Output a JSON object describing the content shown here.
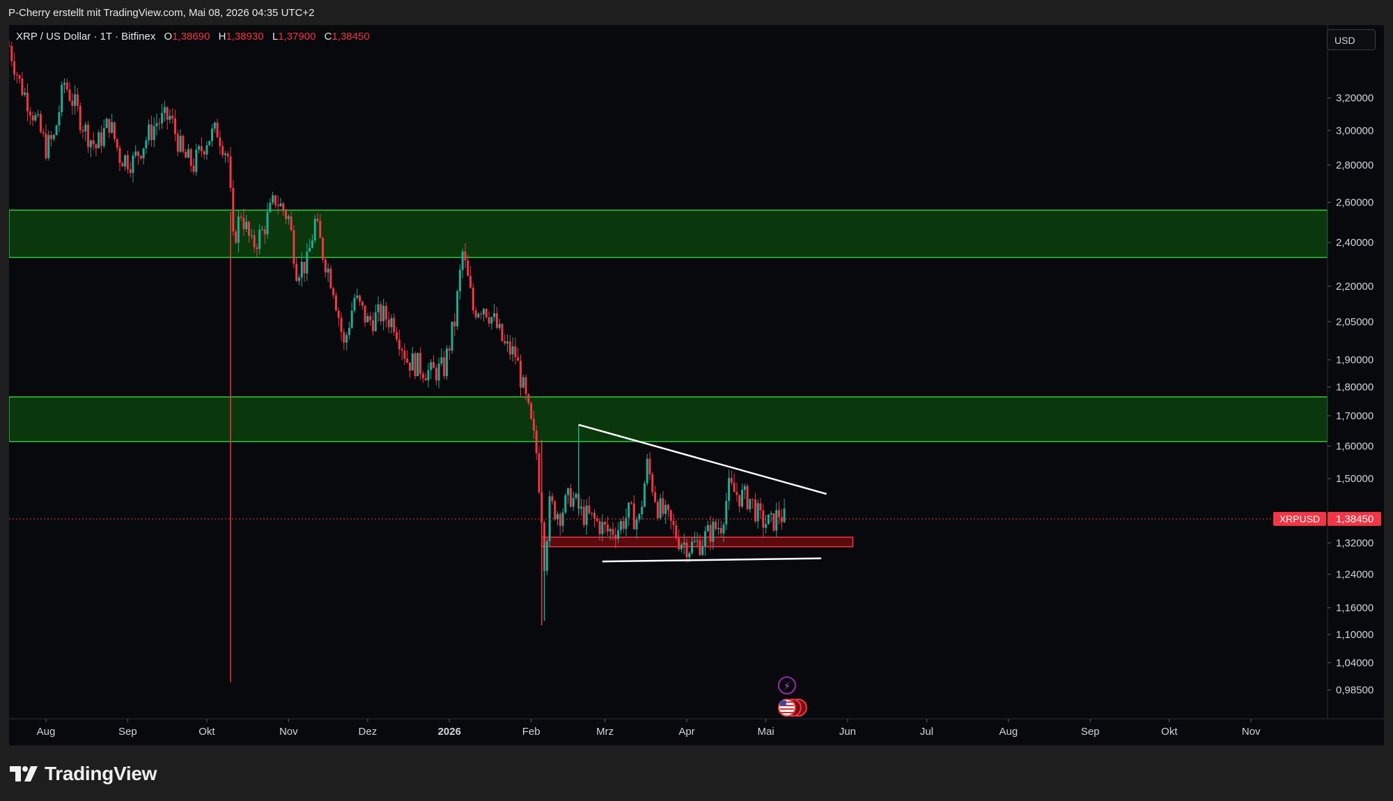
{
  "header": {
    "meta": "P-Cherry erstellt mit TradingView.com, Mai 08, 2026 04:35 UTC+2"
  },
  "legend": {
    "symbol": "XRP / US Dollar · 1T · Bitfinex",
    "o_label": "O",
    "o_value": "1,38690",
    "h_label": "H",
    "h_value": "1,38930",
    "l_label": "L",
    "l_value": "1,37900",
    "c_label": "C",
    "c_value": "1,38450"
  },
  "currency": "USD",
  "last_price": {
    "ticker": "XRPUSD",
    "value": "1,38450"
  },
  "brand": "TradingView",
  "colors": {
    "up": "#22ab94",
    "down": "#f23645",
    "zone_green": "#0b3d0b",
    "zone_border": "#2ecc40",
    "zone_red": "#6b0a0d",
    "bg": "#08090c"
  },
  "chart_data": {
    "type": "candlestick",
    "y_scale": "log",
    "ylim": [
      0.93,
      3.7
    ],
    "x_range_months": [
      "2025-07-18",
      "2026-11-30"
    ],
    "y_ticks": [
      {
        "v": 3.2,
        "label": "3,20000"
      },
      {
        "v": 3.0,
        "label": "3,00000"
      },
      {
        "v": 2.8,
        "label": "2,80000"
      },
      {
        "v": 2.6,
        "label": "2,60000"
      },
      {
        "v": 2.4,
        "label": "2,40000"
      },
      {
        "v": 2.2,
        "label": "2,20000"
      },
      {
        "v": 2.05,
        "label": "2,05000"
      },
      {
        "v": 1.9,
        "label": "1,90000"
      },
      {
        "v": 1.8,
        "label": "1,80000"
      },
      {
        "v": 1.7,
        "label": "1,70000"
      },
      {
        "v": 1.6,
        "label": "1,60000"
      },
      {
        "v": 1.5,
        "label": "1,50000"
      },
      {
        "v": 1.32,
        "label": "1,32000"
      },
      {
        "v": 1.24,
        "label": "1,24000"
      },
      {
        "v": 1.16,
        "label": "1,16000"
      },
      {
        "v": 1.1,
        "label": "1,10000"
      },
      {
        "v": 1.04,
        "label": "1,04000"
      },
      {
        "v": 0.985,
        "label": "0,98500"
      }
    ],
    "x_ticks": [
      {
        "d": "2025-08-01",
        "label": "Aug"
      },
      {
        "d": "2025-09-01",
        "label": "Sep"
      },
      {
        "d": "2025-10-01",
        "label": "Okt"
      },
      {
        "d": "2025-11-01",
        "label": "Nov"
      },
      {
        "d": "2025-12-01",
        "label": "Dez"
      },
      {
        "d": "2026-01-01",
        "label": "2026"
      },
      {
        "d": "2026-02-01",
        "label": "Feb"
      },
      {
        "d": "2026-03-01",
        "label": "Mrz"
      },
      {
        "d": "2026-04-01",
        "label": "Apr"
      },
      {
        "d": "2026-05-01",
        "label": "Mai"
      },
      {
        "d": "2026-06-01",
        "label": "Jun"
      },
      {
        "d": "2026-07-01",
        "label": "Jul"
      },
      {
        "d": "2026-08-01",
        "label": "Aug"
      },
      {
        "d": "2026-09-01",
        "label": "Sep"
      },
      {
        "d": "2026-10-01",
        "label": "Okt"
      },
      {
        "d": "2026-11-01",
        "label": "Nov"
      }
    ],
    "price_path": [
      [
        "2025-07-18",
        3.55
      ],
      [
        "2025-07-22",
        3.3
      ],
      [
        "2025-07-26",
        3.15
      ],
      [
        "2025-08-01",
        2.9
      ],
      [
        "2025-08-04",
        2.95
      ],
      [
        "2025-08-08",
        3.3
      ],
      [
        "2025-08-12",
        3.15
      ],
      [
        "2025-08-16",
        3.0
      ],
      [
        "2025-08-20",
        2.9
      ],
      [
        "2025-08-25",
        3.05
      ],
      [
        "2025-08-29",
        2.85
      ],
      [
        "2025-09-03",
        2.82
      ],
      [
        "2025-09-08",
        2.95
      ],
      [
        "2025-09-12",
        3.05
      ],
      [
        "2025-09-17",
        3.08
      ],
      [
        "2025-09-22",
        2.85
      ],
      [
        "2025-09-26",
        2.8
      ],
      [
        "2025-10-01",
        2.95
      ],
      [
        "2025-10-05",
        3.0
      ],
      [
        "2025-10-09",
        2.85
      ],
      [
        "2025-10-11",
        2.4
      ],
      [
        "2025-10-14",
        2.55
      ],
      [
        "2025-10-18",
        2.38
      ],
      [
        "2025-10-22",
        2.45
      ],
      [
        "2025-10-27",
        2.62
      ],
      [
        "2025-11-01",
        2.52
      ],
      [
        "2025-11-04",
        2.28
      ],
      [
        "2025-11-08",
        2.3
      ],
      [
        "2025-11-11",
        2.5
      ],
      [
        "2025-11-14",
        2.35
      ],
      [
        "2025-11-18",
        2.2
      ],
      [
        "2025-11-22",
        1.95
      ],
      [
        "2025-11-26",
        2.15
      ],
      [
        "2025-12-01",
        2.05
      ],
      [
        "2025-12-06",
        2.08
      ],
      [
        "2025-12-11",
        2.05
      ],
      [
        "2025-12-16",
        1.9
      ],
      [
        "2025-12-20",
        1.88
      ],
      [
        "2025-12-25",
        1.85
      ],
      [
        "2025-12-30",
        1.87
      ],
      [
        "2026-01-03",
        2.05
      ],
      [
        "2026-01-06",
        2.35
      ],
      [
        "2026-01-10",
        2.1
      ],
      [
        "2026-01-14",
        2.12
      ],
      [
        "2026-01-18",
        2.05
      ],
      [
        "2026-01-22",
        1.95
      ],
      [
        "2026-01-26",
        1.92
      ],
      [
        "2026-01-30",
        1.75
      ],
      [
        "2026-02-03",
        1.58
      ],
      [
        "2026-02-05",
        1.4
      ],
      [
        "2026-02-06",
        1.28
      ],
      [
        "2026-02-08",
        1.42
      ],
      [
        "2026-02-12",
        1.4
      ],
      [
        "2026-02-16",
        1.45
      ],
      [
        "2026-02-20",
        1.4
      ],
      [
        "2026-02-25",
        1.38
      ],
      [
        "2026-03-02",
        1.35
      ],
      [
        "2026-03-06",
        1.36
      ],
      [
        "2026-03-10",
        1.4
      ],
      [
        "2026-03-14",
        1.38
      ],
      [
        "2026-03-17",
        1.54
      ],
      [
        "2026-03-21",
        1.42
      ],
      [
        "2026-03-25",
        1.38
      ],
      [
        "2026-03-29",
        1.33
      ],
      [
        "2026-04-02",
        1.31
      ],
      [
        "2026-04-06",
        1.32
      ],
      [
        "2026-04-10",
        1.35
      ],
      [
        "2026-04-14",
        1.37
      ],
      [
        "2026-04-17",
        1.47
      ],
      [
        "2026-04-21",
        1.45
      ],
      [
        "2026-04-25",
        1.44
      ],
      [
        "2026-04-29",
        1.38
      ],
      [
        "2026-05-03",
        1.37
      ],
      [
        "2026-05-06",
        1.4
      ],
      [
        "2026-05-08",
        1.3845
      ]
    ],
    "wicks": [
      [
        "2025-10-10",
        2.55,
        1.0,
        "down"
      ],
      [
        "2026-02-05",
        1.62,
        1.12,
        "down"
      ],
      [
        "2026-02-06",
        1.32,
        1.13,
        "up"
      ],
      [
        "2026-02-19",
        1.67,
        1.4,
        "up"
      ]
    ],
    "zones": [
      {
        "kind": "support-resistance",
        "y1": 2.33,
        "y2": 2.56,
        "x1": "2025-07-18",
        "x2": "2026-11-30"
      },
      {
        "kind": "support-resistance",
        "y1": 1.615,
        "y2": 1.765,
        "x1": "2025-07-18",
        "x2": "2026-11-30"
      },
      {
        "kind": "demand",
        "y1": 1.31,
        "y2": 1.335,
        "x1": "2026-02-05",
        "x2": "2026-06-03"
      }
    ],
    "trendlines": [
      {
        "x1": "2026-02-19",
        "y1": 1.67,
        "x2": "2026-05-24",
        "y2": 1.455
      },
      {
        "x1": "2026-02-28",
        "y1": 1.272,
        "x2": "2026-05-22",
        "y2": 1.28
      }
    ],
    "last_price_line": 1.3845
  }
}
